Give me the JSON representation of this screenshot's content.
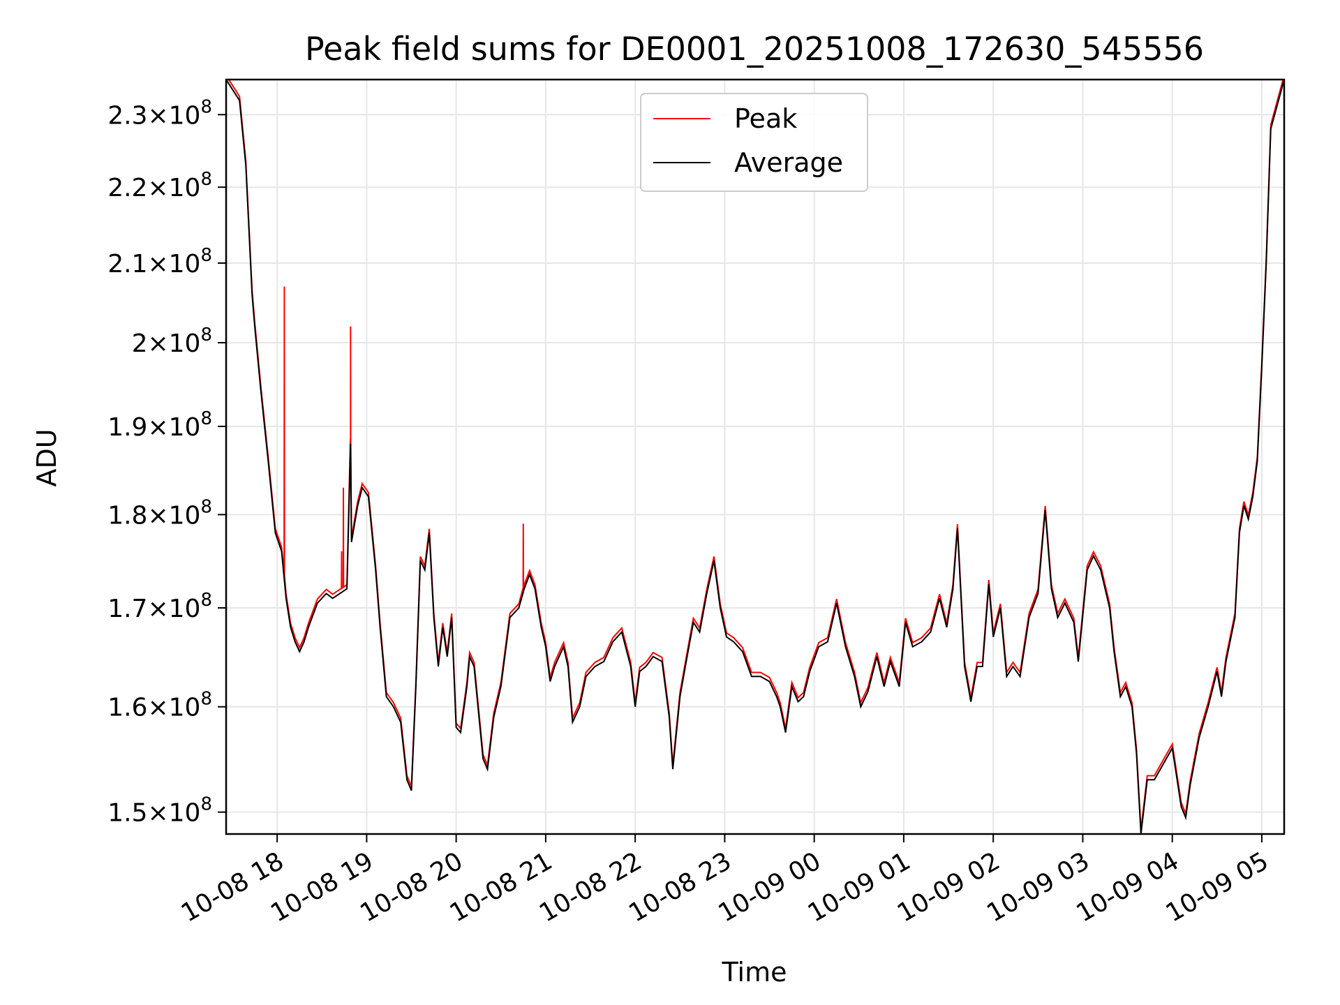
{
  "chart_data": {
    "type": "line",
    "title": "Peak field sums for DE0001_20251008_172630_545556",
    "xlabel": "Time",
    "ylabel": "ADU",
    "yscale": "log",
    "ylim": [
      148000000,
      235000000
    ],
    "xlim_hours": [
      -0.57,
      11.25
    ],
    "grid": true,
    "legend_position": "top-center",
    "x_ticks": [
      {
        "label": "10-08 18",
        "hour": 0
      },
      {
        "label": "10-08 19",
        "hour": 1
      },
      {
        "label": "10-08 20",
        "hour": 2
      },
      {
        "label": "10-08 21",
        "hour": 3
      },
      {
        "label": "10-08 22",
        "hour": 4
      },
      {
        "label": "10-08 23",
        "hour": 5
      },
      {
        "label": "10-09 00",
        "hour": 6
      },
      {
        "label": "10-09 01",
        "hour": 7
      },
      {
        "label": "10-09 02",
        "hour": 8
      },
      {
        "label": "10-09 03",
        "hour": 9
      },
      {
        "label": "10-09 04",
        "hour": 10
      },
      {
        "label": "10-09 05",
        "hour": 11
      }
    ],
    "y_ticks": [
      {
        "mantissa": "1.5",
        "exponent": "8",
        "value": 150000000
      },
      {
        "mantissa": "1.6",
        "exponent": "8",
        "value": 160000000
      },
      {
        "mantissa": "1.7",
        "exponent": "8",
        "value": 170000000
      },
      {
        "mantissa": "1.8",
        "exponent": "8",
        "value": 180000000
      },
      {
        "mantissa": "1.9",
        "exponent": "8",
        "value": 190000000
      },
      {
        "mantissa": "2",
        "exponent": "8",
        "value": 200000000
      },
      {
        "mantissa": "2.1",
        "exponent": "8",
        "value": 210000000
      },
      {
        "mantissa": "2.2",
        "exponent": "8",
        "value": 220000000
      },
      {
        "mantissa": "2.3",
        "exponent": "8",
        "value": 230000000
      }
    ],
    "series": [
      {
        "name": "Peak",
        "color": "#ff0000",
        "spikes": [
          {
            "hour": 0.08,
            "value": 207000000
          },
          {
            "hour": 0.72,
            "value": 176000000
          },
          {
            "hour": 0.74,
            "value": 183000000
          },
          {
            "hour": 0.82,
            "value": 202000000
          },
          {
            "hour": 2.75,
            "value": 179000000
          }
        ]
      },
      {
        "name": "Average",
        "color": "#000000",
        "points": [
          [
            -0.57,
            235000000
          ],
          [
            -0.42,
            232000000
          ],
          [
            -0.35,
            223000000
          ],
          [
            -0.28,
            206000000
          ],
          [
            -0.25,
            202000000
          ],
          [
            -0.18,
            194000000
          ],
          [
            -0.1,
            186000000
          ],
          [
            -0.02,
            178000000
          ],
          [
            0.05,
            176000000
          ],
          [
            0.1,
            171000000
          ],
          [
            0.15,
            168000000
          ],
          [
            0.2,
            166500000
          ],
          [
            0.25,
            165500000
          ],
          [
            0.3,
            166500000
          ],
          [
            0.35,
            168000000
          ],
          [
            0.45,
            170500000
          ],
          [
            0.55,
            171500000
          ],
          [
            0.62,
            171000000
          ],
          [
            0.7,
            171500000
          ],
          [
            0.78,
            172000000
          ],
          [
            0.82,
            188000000
          ],
          [
            0.83,
            177000000
          ],
          [
            0.9,
            181000000
          ],
          [
            0.95,
            183000000
          ],
          [
            1.02,
            182000000
          ],
          [
            1.1,
            174000000
          ],
          [
            1.15,
            168000000
          ],
          [
            1.22,
            161000000
          ],
          [
            1.3,
            160000000
          ],
          [
            1.38,
            158500000
          ],
          [
            1.45,
            153000000
          ],
          [
            1.5,
            152000000
          ],
          [
            1.55,
            162000000
          ],
          [
            1.6,
            175000000
          ],
          [
            1.65,
            174000000
          ],
          [
            1.7,
            178000000
          ],
          [
            1.75,
            169000000
          ],
          [
            1.8,
            164000000
          ],
          [
            1.85,
            168000000
          ],
          [
            1.9,
            165000000
          ],
          [
            1.95,
            169000000
          ],
          [
            2.0,
            158000000
          ],
          [
            2.05,
            157500000
          ],
          [
            2.12,
            162000000
          ],
          [
            2.15,
            165000000
          ],
          [
            2.2,
            164000000
          ],
          [
            2.3,
            155000000
          ],
          [
            2.35,
            154000000
          ],
          [
            2.42,
            159000000
          ],
          [
            2.5,
            162000000
          ],
          [
            2.6,
            169000000
          ],
          [
            2.7,
            170000000
          ],
          [
            2.76,
            172000000
          ],
          [
            2.82,
            173500000
          ],
          [
            2.88,
            172000000
          ],
          [
            2.95,
            168000000
          ],
          [
            3.0,
            166000000
          ],
          [
            3.05,
            162500000
          ],
          [
            3.1,
            164000000
          ],
          [
            3.2,
            166000000
          ],
          [
            3.25,
            164000000
          ],
          [
            3.3,
            158500000
          ],
          [
            3.38,
            160000000
          ],
          [
            3.45,
            163000000
          ],
          [
            3.55,
            164000000
          ],
          [
            3.65,
            164500000
          ],
          [
            3.75,
            166500000
          ],
          [
            3.85,
            167500000
          ],
          [
            3.95,
            164000000
          ],
          [
            4.0,
            160000000
          ],
          [
            4.05,
            163500000
          ],
          [
            4.12,
            164000000
          ],
          [
            4.2,
            165000000
          ],
          [
            4.3,
            164500000
          ],
          [
            4.38,
            159000000
          ],
          [
            4.42,
            154000000
          ],
          [
            4.5,
            161000000
          ],
          [
            4.58,
            165000000
          ],
          [
            4.65,
            168500000
          ],
          [
            4.72,
            167500000
          ],
          [
            4.8,
            171500000
          ],
          [
            4.88,
            175000000
          ],
          [
            4.95,
            170000000
          ],
          [
            5.02,
            167000000
          ],
          [
            5.1,
            166500000
          ],
          [
            5.2,
            165500000
          ],
          [
            5.3,
            163000000
          ],
          [
            5.4,
            163000000
          ],
          [
            5.5,
            162500000
          ],
          [
            5.58,
            161000000
          ],
          [
            5.62,
            160000000
          ],
          [
            5.68,
            157500000
          ],
          [
            5.75,
            162000000
          ],
          [
            5.82,
            160500000
          ],
          [
            5.88,
            161000000
          ],
          [
            5.95,
            163500000
          ],
          [
            6.05,
            166000000
          ],
          [
            6.15,
            166500000
          ],
          [
            6.25,
            170500000
          ],
          [
            6.35,
            166000000
          ],
          [
            6.45,
            163000000
          ],
          [
            6.52,
            160000000
          ],
          [
            6.6,
            161500000
          ],
          [
            6.7,
            165000000
          ],
          [
            6.78,
            162000000
          ],
          [
            6.85,
            164500000
          ],
          [
            6.95,
            162000000
          ],
          [
            7.02,
            168500000
          ],
          [
            7.1,
            166000000
          ],
          [
            7.2,
            166500000
          ],
          [
            7.3,
            167500000
          ],
          [
            7.4,
            171000000
          ],
          [
            7.48,
            168000000
          ],
          [
            7.55,
            172000000
          ],
          [
            7.6,
            178500000
          ],
          [
            7.68,
            164000000
          ],
          [
            7.72,
            162000000
          ],
          [
            7.75,
            160500000
          ],
          [
            7.82,
            164000000
          ],
          [
            7.88,
            164000000
          ],
          [
            7.95,
            172500000
          ],
          [
            8.0,
            167000000
          ],
          [
            8.08,
            170000000
          ],
          [
            8.15,
            163000000
          ],
          [
            8.22,
            164000000
          ],
          [
            8.3,
            163000000
          ],
          [
            8.4,
            169000000
          ],
          [
            8.5,
            171500000
          ],
          [
            8.58,
            180500000
          ],
          [
            8.65,
            172000000
          ],
          [
            8.72,
            169000000
          ],
          [
            8.8,
            170500000
          ],
          [
            8.9,
            168500000
          ],
          [
            8.95,
            164500000
          ],
          [
            9.05,
            174000000
          ],
          [
            9.12,
            175500000
          ],
          [
            9.2,
            174000000
          ],
          [
            9.3,
            170000000
          ],
          [
            9.35,
            165500000
          ],
          [
            9.42,
            161000000
          ],
          [
            9.48,
            162000000
          ],
          [
            9.55,
            160000000
          ],
          [
            9.6,
            155500000
          ],
          [
            9.65,
            148000000
          ],
          [
            9.72,
            153000000
          ],
          [
            9.8,
            153000000
          ],
          [
            9.9,
            154500000
          ],
          [
            10.0,
            156000000
          ],
          [
            10.1,
            150500000
          ],
          [
            10.15,
            149500000
          ],
          [
            10.2,
            152500000
          ],
          [
            10.3,
            157000000
          ],
          [
            10.4,
            160000000
          ],
          [
            10.5,
            163500000
          ],
          [
            10.55,
            161000000
          ],
          [
            10.6,
            164500000
          ],
          [
            10.7,
            169000000
          ],
          [
            10.75,
            178000000
          ],
          [
            10.8,
            181000000
          ],
          [
            10.85,
            179500000
          ],
          [
            10.9,
            182000000
          ],
          [
            10.95,
            186000000
          ],
          [
            11.0,
            197000000
          ],
          [
            11.05,
            210000000
          ],
          [
            11.1,
            228000000
          ],
          [
            11.25,
            235000000
          ]
        ]
      }
    ]
  }
}
